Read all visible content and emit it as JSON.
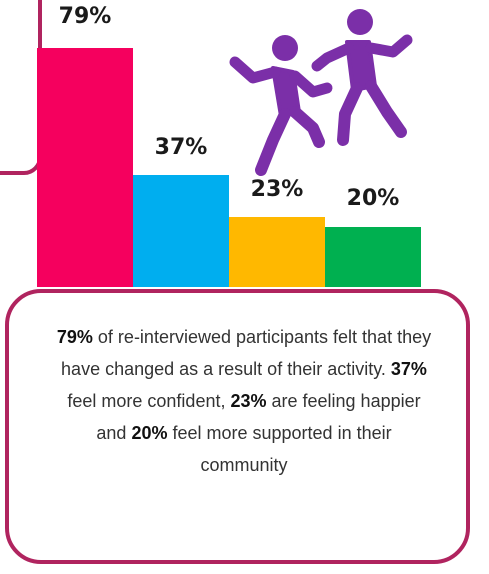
{
  "chart_data": {
    "type": "bar",
    "categories": [
      "changed as a result of activity",
      "more confident",
      "happier",
      "more supported in community"
    ],
    "values": [
      79,
      37,
      23,
      20
    ],
    "value_labels": [
      "79%",
      "37%",
      "23%",
      "20%"
    ],
    "colors": [
      "#f5005e",
      "#00aeef",
      "#ffb800",
      "#00b050"
    ],
    "ylim": [
      0,
      100
    ],
    "title": "",
    "xlabel": "",
    "ylabel": ""
  },
  "caption": {
    "p1_bold": "79%",
    "p1_text": " of re-interviewed participants felt that they have changed as a result of their activity. ",
    "p2_bold": "37%",
    "p2_text": " feel more confident, ",
    "p3_bold": "23%",
    "p3_text": " are feeling happier and ",
    "p4_bold": "20%",
    "p4_text": " feel more supported in their community"
  },
  "icons": {
    "figures": "jumping-people-icon",
    "figure_color": "#7b2fa8"
  },
  "colors": {
    "frame": "#b0245f"
  }
}
